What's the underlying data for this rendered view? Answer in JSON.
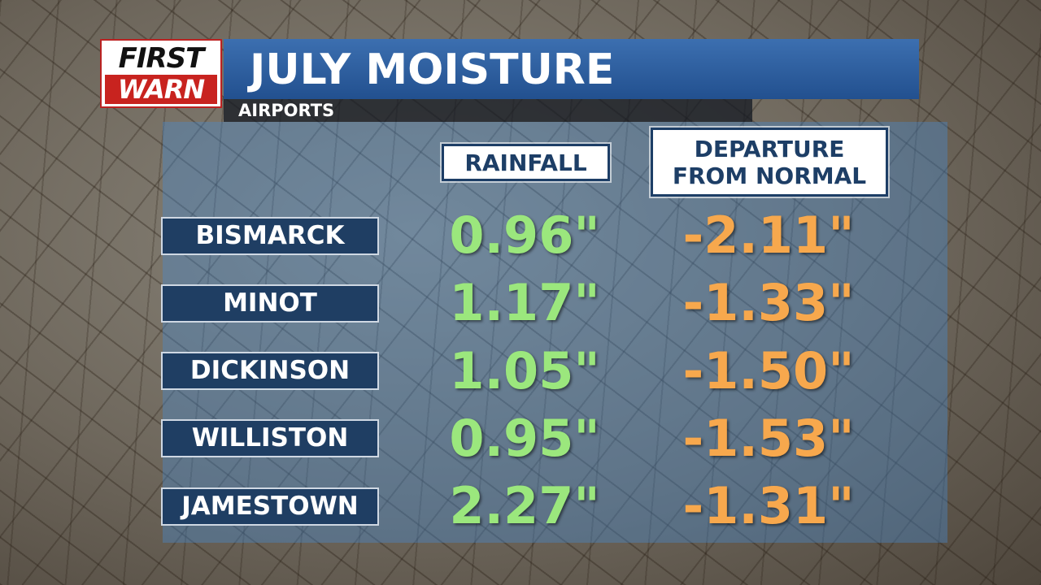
{
  "logo": {
    "line1": "FIRST",
    "line2": "WARN"
  },
  "header": {
    "title": "JULY MOISTURE",
    "subtitle": "AIRPORTS"
  },
  "table": {
    "columns": [
      "RAINFALL",
      "DEPARTURE FROM NORMAL"
    ],
    "rows": [
      {
        "city": "BISMARCK",
        "rainfall": "0.96\"",
        "departure": "-2.11\""
      },
      {
        "city": "MINOT",
        "rainfall": "1.17\"",
        "departure": "-1.33\""
      },
      {
        "city": "DICKINSON",
        "rainfall": "1.05\"",
        "departure": "-1.50\""
      },
      {
        "city": "WILLISTON",
        "rainfall": "0.95\"",
        "departure": "-1.53\""
      },
      {
        "city": "JAMESTOWN",
        "rainfall": "2.27\"",
        "departure": "-1.31\""
      }
    ]
  }
}
